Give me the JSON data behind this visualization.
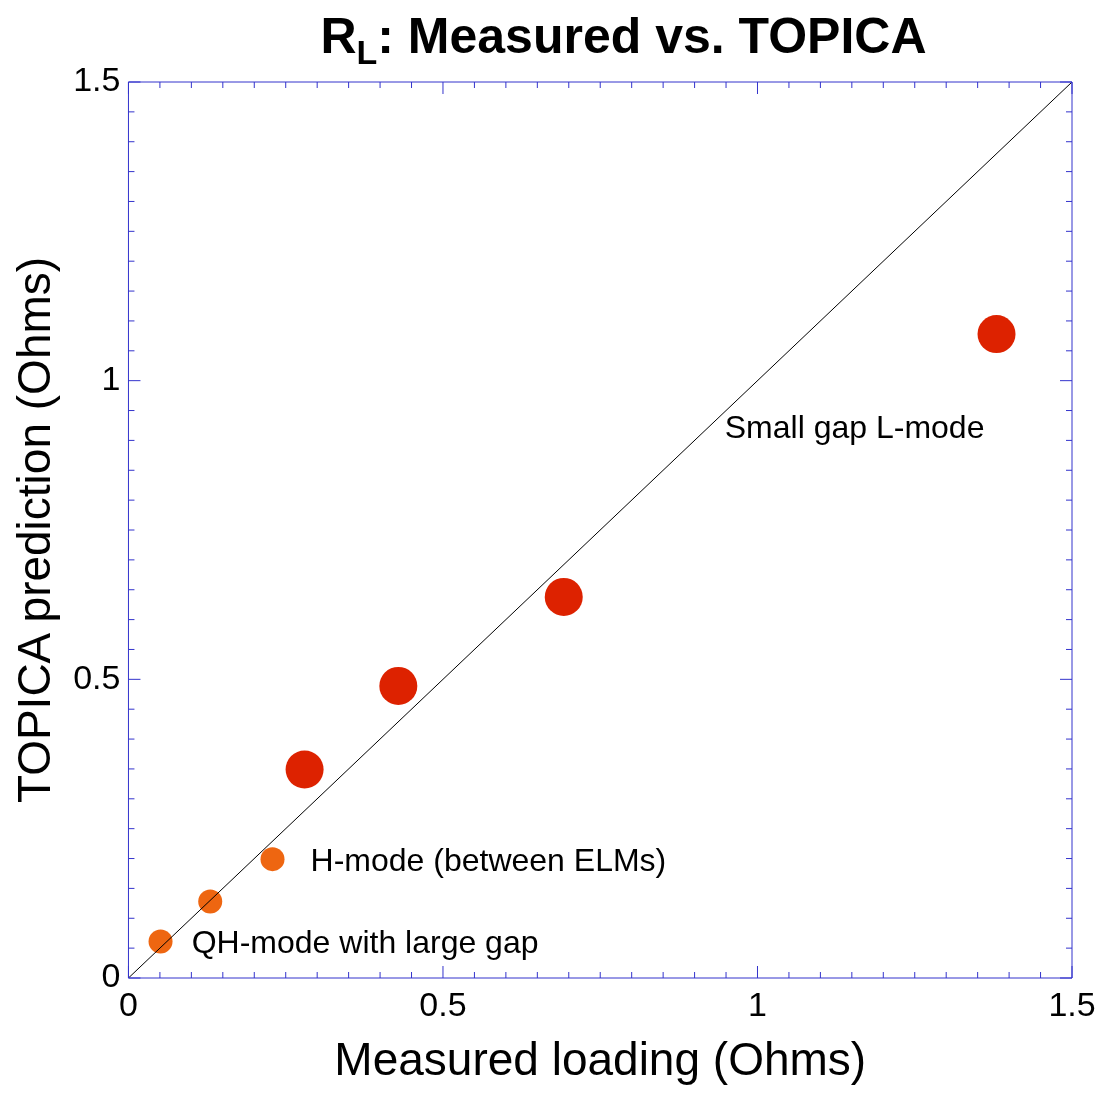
{
  "chart_data": {
    "type": "scatter",
    "title": "R$_{L}$: Measured vs. TOPICA",
    "xlabel": "Measured loading (Ohms)",
    "ylabel": "TOPICA prediction (Ohms)",
    "xlim": [
      0,
      1.5
    ],
    "ylim": [
      0,
      1.5
    ],
    "xticks": [
      0,
      {
        "value": 0.05,
        "label": null
      },
      {
        "value": 0.1,
        "label": null
      },
      {
        "value": 0.15,
        "label": null
      },
      {
        "value": 0.2,
        "label": null
      },
      {
        "value": 0.25,
        "label": null
      },
      {
        "value": 0.3,
        "label": null
      },
      {
        "value": 0.35,
        "label": null
      },
      {
        "value": 0.4,
        "label": null
      },
      {
        "value": 0.45,
        "label": null
      },
      0.5,
      {
        "value": 0.55,
        "label": null
      },
      {
        "value": 0.6,
        "label": null
      },
      {
        "value": 0.65,
        "label": null
      },
      {
        "value": 0.7,
        "label": null
      },
      {
        "value": 0.75,
        "label": null
      },
      {
        "value": 0.8,
        "label": null
      },
      {
        "value": 0.85,
        "label": null
      },
      {
        "value": 0.9,
        "label": null
      },
      {
        "value": 0.95,
        "label": null
      },
      1,
      {
        "value": 1.05,
        "label": null
      },
      {
        "value": 1.1,
        "label": null
      },
      {
        "value": 1.15,
        "label": null
      },
      {
        "value": 1.2,
        "label": null
      },
      {
        "value": 1.25,
        "label": null
      },
      {
        "value": 1.3,
        "label": null
      },
      {
        "value": 1.35,
        "label": null
      },
      {
        "value": 1.4,
        "label": null
      },
      {
        "value": 1.45,
        "label": null
      },
      1.5
    ],
    "yticks": [
      0,
      {
        "value": 0.05,
        "label": null
      },
      {
        "value": 0.1,
        "label": null
      },
      {
        "value": 0.15,
        "label": null
      },
      {
        "value": 0.2,
        "label": null
      },
      {
        "value": 0.25,
        "label": null
      },
      {
        "value": 0.3,
        "label": null
      },
      {
        "value": 0.35,
        "label": null
      },
      {
        "value": 0.4,
        "label": null
      },
      {
        "value": 0.45,
        "label": null
      },
      0.5,
      {
        "value": 0.55,
        "label": null
      },
      {
        "value": 0.6,
        "label": null
      },
      {
        "value": 0.65,
        "label": null
      },
      {
        "value": 0.7,
        "label": null
      },
      {
        "value": 0.75,
        "label": null
      },
      {
        "value": 0.8,
        "label": null
      },
      {
        "value": 0.85,
        "label": null
      },
      {
        "value": 0.9,
        "label": null
      },
      {
        "value": 0.95,
        "label": null
      },
      1,
      {
        "value": 1.05,
        "label": null
      },
      {
        "value": 1.1,
        "label": null
      },
      {
        "value": 1.15,
        "label": null
      },
      {
        "value": 1.2,
        "label": null
      },
      {
        "value": 1.25,
        "label": null
      },
      {
        "value": 1.3,
        "label": null
      },
      {
        "value": 1.35,
        "label": null
      },
      {
        "value": 1.4,
        "label": null
      },
      {
        "value": 1.45,
        "label": null
      },
      1.5
    ],
    "marker": "circle",
    "grid": false,
    "legend": false,
    "series": [
      {
        "type": "line",
        "color": "#000000",
        "x": [
          0,
          1.5
        ],
        "values": [
          0,
          1.5
        ],
        "marker": "none"
      },
      {
        "color": "#ee6611",
        "x": [
          0.051,
          0.13,
          0.229
        ],
        "values": [
          0.061,
          0.128,
          0.199
        ]
      },
      {
        "color": "#dd2200",
        "x": [
          0.28,
          0.429,
          0.692,
          1.38
        ],
        "values": [
          0.349,
          0.489,
          0.638,
          1.078
        ]
      }
    ],
    "annotations": [
      "Small gap L-mode",
      "H-mode (between ELMs)",
      "QH-mode with large gap"
    ]
  }
}
